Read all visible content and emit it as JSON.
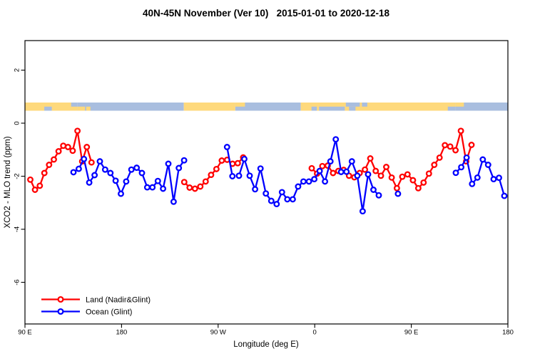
{
  "chart_data": {
    "type": "line",
    "title": "40N-45N November (Ver 10)   2015-01-01 to 2020-12-18",
    "xlabel": "Longitude (deg E)",
    "ylabel": "XCO2 - MLO trend (ppm)",
    "xlim": [
      90,
      540
    ],
    "ylim": [
      -7.6,
      3.1
    ],
    "grid": false,
    "x_ticks": {
      "values": [
        90,
        180,
        270,
        360,
        450,
        540
      ],
      "labels": [
        "90 E",
        "180",
        "90 W",
        "0",
        "90 E",
        "180"
      ]
    },
    "y_ticks": {
      "values": [
        2,
        0,
        -2,
        -4,
        -6
      ],
      "labels": [
        "2",
        "0",
        "-2",
        "-4",
        "-6"
      ]
    },
    "legend": {
      "position": "bottom-left",
      "entries": [
        {
          "label": "Land (Nadir&Glint)",
          "color": "#ff0000"
        },
        {
          "label": "Ocean (Glint)",
          "color": "#0000ff"
        }
      ]
    },
    "series": [
      {
        "name": "Land (Nadir&Glint)",
        "color": "#ff0000",
        "marker": "open-circle",
        "segments": [
          {
            "x": [
              95.0,
              99.4,
              103.8,
              108.1,
              112.5,
              116.9,
              121.3,
              125.7,
              130.1,
              134.5,
              138.9,
              143.3,
              147.6,
              152.0
            ],
            "y": [
              -2.13,
              -2.51,
              -2.36,
              -1.88,
              -1.57,
              -1.37,
              -1.06,
              -0.85,
              -0.9,
              -1.04,
              -0.29,
              -1.44,
              -0.9,
              -1.48
            ]
          },
          {
            "x": [
              238.4,
              243.4,
              248.4,
              253.4,
              258.4,
              263.4,
              268.4,
              273.4,
              278.4,
              283.4,
              288.3,
              293.3
            ],
            "y": [
              -2.22,
              -2.43,
              -2.47,
              -2.39,
              -2.2,
              -1.95,
              -1.73,
              -1.41,
              -1.38,
              -1.53,
              -1.51,
              -1.29
            ]
          },
          {
            "x": [
              357.2,
              362.2,
              367.1,
              372.1,
              377.1,
              382.0,
              387.0,
              392.0,
              396.9,
              401.9,
              406.8,
              411.8,
              416.8,
              421.7,
              426.7,
              431.7,
              436.6,
              441.6,
              446.5,
              451.5,
              456.5,
              461.4,
              466.4,
              471.4,
              476.3,
              481.3,
              486.2,
              491.2,
              496.2,
              501.1,
              506.1
            ],
            "y": [
              -1.7,
              -1.9,
              -1.62,
              -1.6,
              -1.88,
              -1.8,
              -1.76,
              -1.98,
              -2.04,
              -1.88,
              -1.75,
              -1.33,
              -1.8,
              -1.98,
              -1.65,
              -2.05,
              -2.45,
              -2.02,
              -1.93,
              -2.15,
              -2.45,
              -2.24,
              -1.9,
              -1.57,
              -1.3,
              -0.83,
              -0.88,
              -1.02,
              -0.29,
              -1.44,
              -0.82
            ]
          }
        ]
      },
      {
        "name": "Ocean (Glint)",
        "color": "#0000ff",
        "marker": "open-circle",
        "segments": [
          {
            "x": [
              135.2,
              140.1,
              145.0,
              149.9,
              154.9,
              159.8,
              164.7,
              169.6,
              174.5,
              179.4,
              184.3,
              189.2,
              194.1,
              199.0,
              203.9,
              208.8,
              213.8,
              218.7,
              223.6,
              228.5,
              233.4,
              238.3
            ],
            "y": [
              -1.85,
              -1.72,
              -1.35,
              -2.24,
              -1.96,
              -1.44,
              -1.75,
              -1.88,
              -2.17,
              -2.66,
              -2.2,
              -1.75,
              -1.68,
              -1.88,
              -2.42,
              -2.42,
              -2.18,
              -2.47,
              -1.53,
              -2.96,
              -1.69,
              -1.4
            ]
          },
          {
            "x": [
              278.3,
              283.3
            ],
            "y": [
              -0.9,
              -2.0
            ]
          },
          {
            "x": [
              289.4,
              294.4,
              299.4,
              304.4,
              309.5,
              314.5,
              319.5,
              324.5,
              329.5,
              334.5,
              339.5,
              344.5,
              349.5,
              354.6,
              359.6,
              364.6,
              369.6,
              374.6,
              379.6,
              384.6,
              389.6,
              394.6,
              399.7,
              404.7,
              409.7,
              414.7,
              419.7
            ],
            "y": [
              -1.98,
              -1.35,
              -1.98,
              -2.49,
              -1.71,
              -2.65,
              -2.93,
              -3.05,
              -2.6,
              -2.87,
              -2.87,
              -2.39,
              -2.2,
              -2.2,
              -2.11,
              -1.8,
              -2.2,
              -1.44,
              -0.61,
              -1.84,
              -1.83,
              -1.44,
              -1.98,
              -3.32,
              -1.93,
              -2.51,
              -2.72
            ]
          },
          {
            "x": [
              437.6
            ],
            "y": [
              -2.66
            ]
          },
          {
            "x": [
              491.5,
              496.5,
              501.5,
              506.6,
              511.6,
              516.6,
              521.6,
              526.7,
              531.7,
              536.7
            ],
            "y": [
              -1.87,
              -1.66,
              -1.3,
              -2.29,
              -2.05,
              -1.37,
              -1.57,
              -2.11,
              -2.06,
              -2.74
            ]
          }
        ]
      }
    ],
    "map_strip": {
      "description": "land/ocean mask band along 40N-45N",
      "y_range_ppm": [
        0.48,
        0.8
      ],
      "land_color": "#fed97c",
      "ocean_color": "#a9bedf",
      "base_segments": [
        {
          "from": 90,
          "to": 139,
          "type": "land"
        },
        {
          "from": 139,
          "to": 238,
          "type": "ocean"
        },
        {
          "from": 238,
          "to": 286,
          "type": "land"
        },
        {
          "from": 286,
          "to": 347,
          "type": "ocean"
        },
        {
          "from": 347,
          "to": 491,
          "type": "land"
        },
        {
          "from": 491,
          "to": 540,
          "type": "ocean"
        }
      ],
      "patches": [
        {
          "from": 108,
          "to": 115,
          "half": "bottom",
          "type": "ocean"
        },
        {
          "from": 133,
          "to": 139,
          "half": "top",
          "type": "ocean"
        },
        {
          "from": 139,
          "to": 146,
          "half": "bottom",
          "type": "land"
        },
        {
          "from": 147,
          "to": 151,
          "half": "bottom",
          "type": "land"
        },
        {
          "from": 286,
          "to": 295,
          "half": "top",
          "type": "land"
        },
        {
          "from": 357,
          "to": 362,
          "half": "bottom",
          "type": "ocean"
        },
        {
          "from": 364,
          "to": 388,
          "half": "bottom",
          "type": "ocean"
        },
        {
          "from": 389,
          "to": 402,
          "half": "top",
          "type": "ocean"
        },
        {
          "from": 392,
          "to": 398,
          "half": "bottom",
          "type": "ocean"
        },
        {
          "from": 404,
          "to": 409,
          "half": "top",
          "type": "ocean"
        },
        {
          "from": 484,
          "to": 491,
          "half": "bottom",
          "type": "ocean"
        },
        {
          "from": 491,
          "to": 499,
          "half": "top",
          "type": "land"
        }
      ]
    }
  }
}
